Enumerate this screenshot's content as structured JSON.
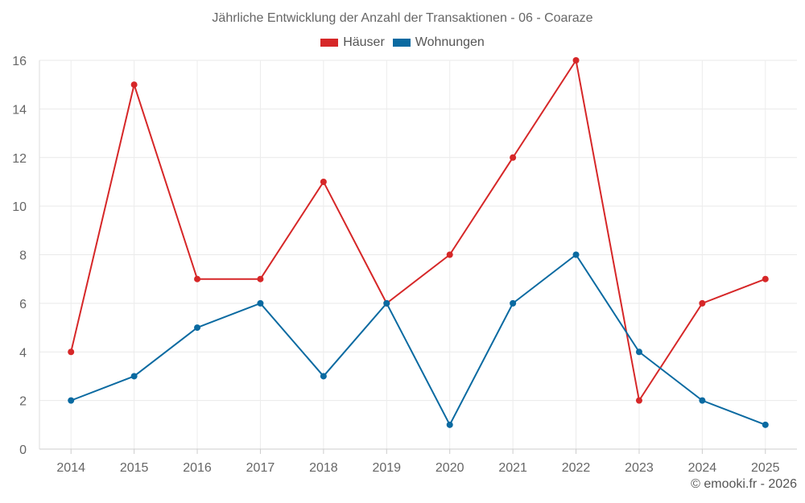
{
  "chart_data": {
    "type": "line",
    "title": "Jährliche Entwicklung der Anzahl der Transaktionen - 06 - Coaraze",
    "categories": [
      "2014",
      "2015",
      "2016",
      "2017",
      "2018",
      "2019",
      "2020",
      "2021",
      "2022",
      "2023",
      "2024",
      "2025"
    ],
    "series": [
      {
        "name": "Häuser",
        "color": "#d62728",
        "values": [
          4,
          15,
          7,
          7,
          11,
          6,
          8,
          12,
          16,
          2,
          6,
          7
        ]
      },
      {
        "name": "Wohnungen",
        "color": "#0a6aa1",
        "values": [
          2,
          3,
          5,
          6,
          3,
          6,
          1,
          6,
          8,
          4,
          2,
          1
        ]
      }
    ],
    "ylim": [
      0,
      16
    ],
    "yticks": [
      0,
      2,
      4,
      6,
      8,
      10,
      12,
      14,
      16
    ],
    "grid": true,
    "legend": "top-center",
    "xlabel": "",
    "ylabel": ""
  },
  "footer": {
    "copyright": "© emooki.fr - 2026"
  }
}
